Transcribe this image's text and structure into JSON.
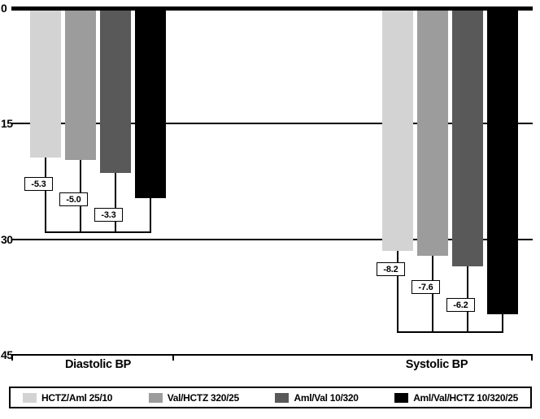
{
  "chart_data": {
    "type": "bar",
    "title": "",
    "groups": [
      "Diastolic BP",
      "Systolic BP"
    ],
    "series": [
      {
        "name": "HCTZ/Aml 25/10",
        "color": "#d3d3d3",
        "values": [
          -19.4,
          -31.5
        ]
      },
      {
        "name": "Val/HCTZ 320/25",
        "color": "#9c9c9c",
        "values": [
          -19.7,
          -32.1
        ]
      },
      {
        "name": "Aml/Val 10/320",
        "color": "#595959",
        "values": [
          -21.4,
          -33.5
        ]
      },
      {
        "name": "Aml/Val/HCTZ 10/320/25",
        "color": "#000000",
        "values": [
          -24.7,
          -39.7
        ]
      }
    ],
    "diff_labels": [
      [
        "-5.3",
        "-5.0",
        "-3.3"
      ],
      [
        "-8.2",
        "-7.6",
        "-6.2"
      ]
    ],
    "y_axis": {
      "min": -45,
      "max": 0,
      "ticks": [
        {
          "label": "0",
          "value": 0
        },
        {
          "label": "15",
          "value": -15
        },
        {
          "label": "30",
          "value": -30
        },
        {
          "label": "45",
          "value": -45
        }
      ]
    },
    "grid": true,
    "legend_position": "bottom"
  }
}
